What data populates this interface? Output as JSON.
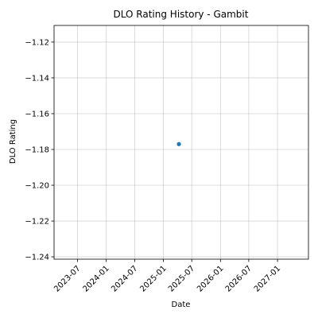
{
  "chart_data": {
    "type": "scatter",
    "title": "DLO Rating History - Gambit",
    "xlabel": "Date",
    "ylabel": "DLO Rating",
    "x_scale": "date",
    "xlim": [
      "2023-02-01",
      "2027-07-18"
    ],
    "ylim": [
      -1.2413,
      -1.1107
    ],
    "x_ticks": [
      {
        "value": "2023-07-01",
        "label": "2023-07"
      },
      {
        "value": "2024-01-01",
        "label": "2024-01"
      },
      {
        "value": "2024-07-01",
        "label": "2024-07"
      },
      {
        "value": "2025-01-01",
        "label": "2025-01"
      },
      {
        "value": "2025-07-01",
        "label": "2025-07"
      },
      {
        "value": "2026-01-01",
        "label": "2026-01"
      },
      {
        "value": "2026-07-01",
        "label": "2026-07"
      },
      {
        "value": "2027-01-01",
        "label": "2027-01"
      }
    ],
    "y_ticks": [
      {
        "value": -1.12,
        "label": "−1.12"
      },
      {
        "value": -1.14,
        "label": "−1.14"
      },
      {
        "value": -1.16,
        "label": "−1.16"
      },
      {
        "value": -1.18,
        "label": "−1.18"
      },
      {
        "value": -1.2,
        "label": "−1.20"
      },
      {
        "value": -1.22,
        "label": "−1.22"
      },
      {
        "value": -1.24,
        "label": "−1.24"
      }
    ],
    "series": [
      {
        "points": [
          {
            "x": "2025-04-10",
            "y": -1.177
          }
        ]
      }
    ],
    "grid": true,
    "colors": {
      "point": "#1f77b4",
      "grid": "#b0b0b0",
      "axis": "#000000"
    }
  }
}
